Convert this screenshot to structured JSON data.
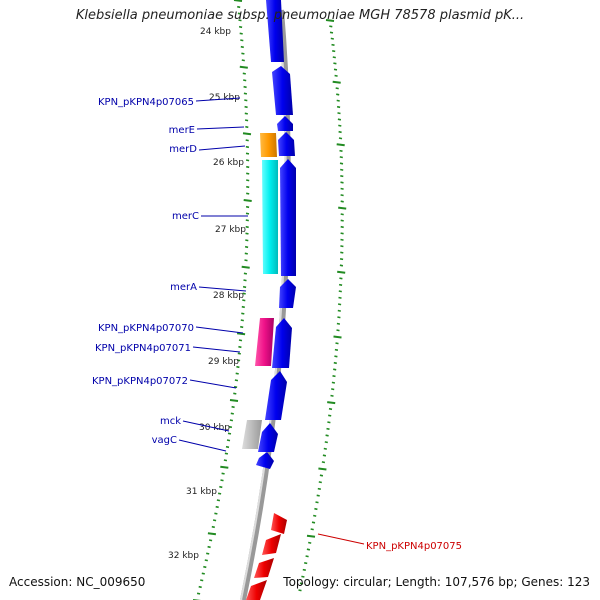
{
  "title": "Klebsiella pneumoniae subsp. pneumoniae MGH 78578 plasmid pK...",
  "footer": {
    "accession": "Accession: NC_009650",
    "topology": "Topology: circular; Length: 107,576 bp; Genes: 123"
  },
  "colors": {
    "forward_cds": "#0000ee",
    "reverse_cds": "#ee0000",
    "mer_gene": "#ff9900",
    "merC": "#00eeee",
    "pink_gene": "#ee1188",
    "grey_gene": "#bbbbbb",
    "backbone": "#999999",
    "tick_green": "#228b22",
    "label_blue": "#0000aa",
    "label_red": "#cc0000"
  },
  "ticks": [
    {
      "label": "24 kbp"
    },
    {
      "label": "25 kbp"
    },
    {
      "label": "26 kbp"
    },
    {
      "label": "27 kbp"
    },
    {
      "label": "28 kbp"
    },
    {
      "label": "29 kbp"
    },
    {
      "label": "30 kbp"
    },
    {
      "label": "31 kbp"
    },
    {
      "label": "32 kbp"
    }
  ],
  "gene_labels": [
    {
      "name": "KPN_pKPN4p07065"
    },
    {
      "name": "merE"
    },
    {
      "name": "merD"
    },
    {
      "name": "merC"
    },
    {
      "name": "merA"
    },
    {
      "name": "KPN_pKPN4p07070"
    },
    {
      "name": "KPN_pKPN4p07071"
    },
    {
      "name": "KPN_pKPN4p07072"
    },
    {
      "name": "mck"
    },
    {
      "name": "vagC"
    },
    {
      "name": "KPN_pKPN4p07075"
    }
  ]
}
